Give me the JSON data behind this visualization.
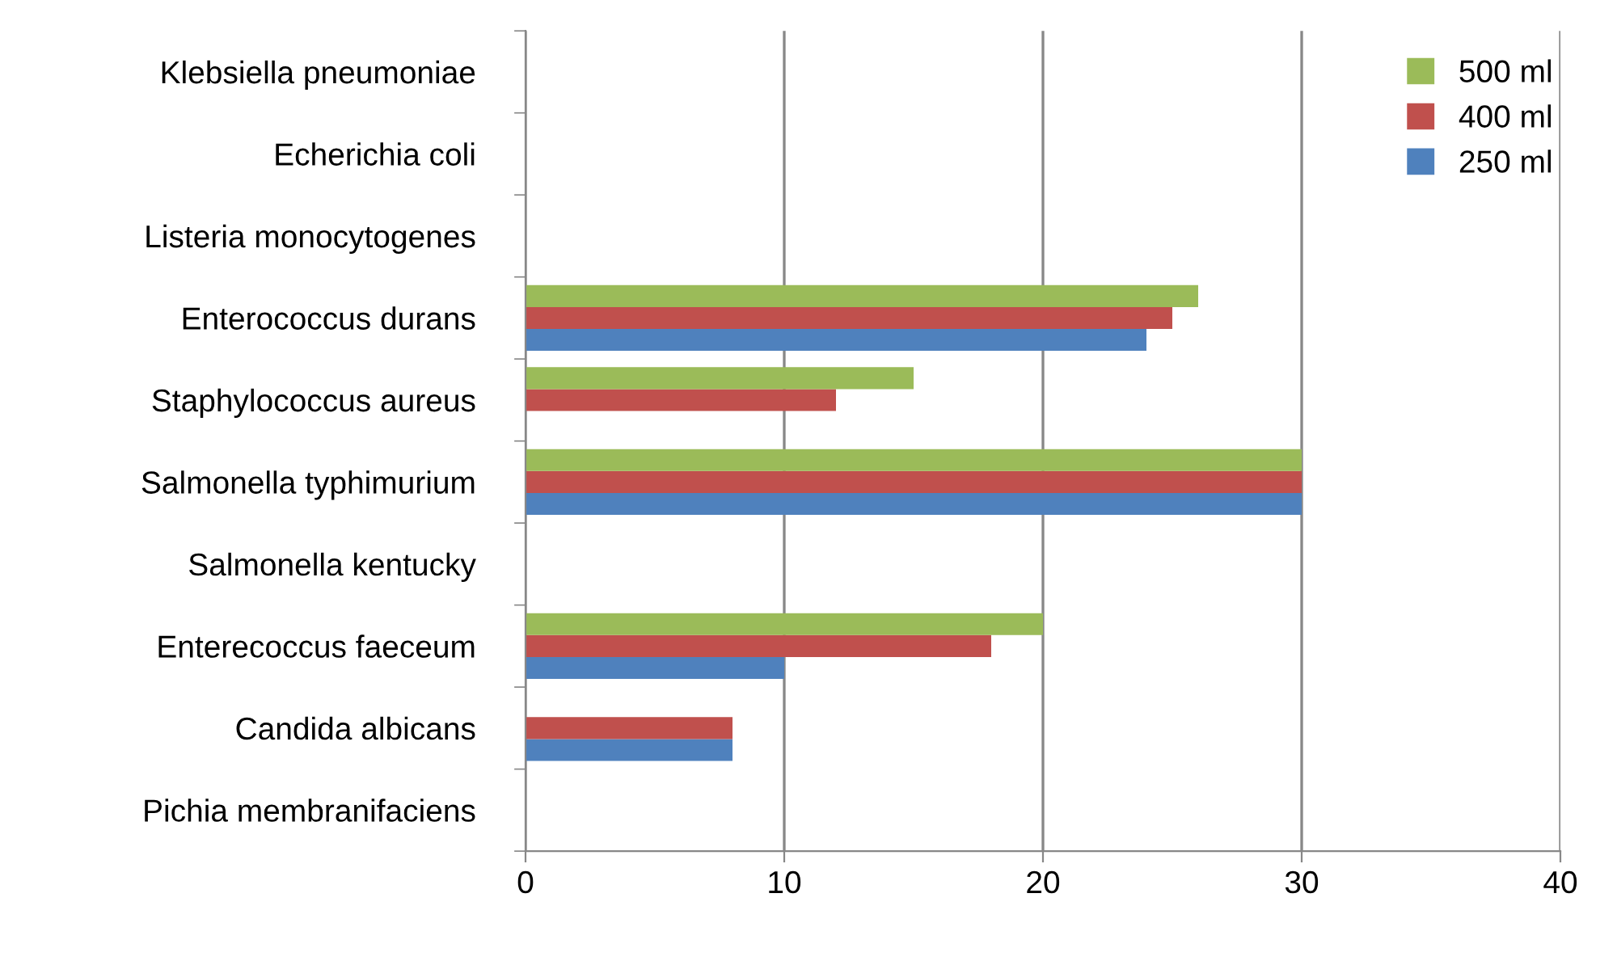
{
  "chart_data": {
    "type": "bar",
    "orientation": "horizontal",
    "categories": [
      "Klebsiella pneumoniae",
      "Echerichia coli",
      "Listeria monocytogenes",
      "Enterococcus durans",
      "Staphylococcus aureus",
      "Salmonella typhimurium",
      "Salmonella kentucky",
      "Enterecoccus faeceum",
      "Candida albicans",
      "Pichia membranifaciens"
    ],
    "series": [
      {
        "name": "250 ml",
        "color": "#4f81bd",
        "values": [
          0,
          0,
          0,
          24,
          0,
          30,
          0,
          10,
          8,
          0
        ]
      },
      {
        "name": "400 ml",
        "color": "#c0504d",
        "values": [
          0,
          0,
          0,
          25,
          12,
          30,
          0,
          18,
          8,
          0
        ]
      },
      {
        "name": "500 ml",
        "color": "#9bbb59",
        "values": [
          0,
          0,
          0,
          26,
          15,
          30,
          0,
          20,
          0,
          0
        ]
      }
    ],
    "xlim": [
      0,
      40
    ],
    "xticks": [
      0,
      10,
      20,
      30,
      40
    ],
    "grid": "x",
    "legend": "top right"
  }
}
